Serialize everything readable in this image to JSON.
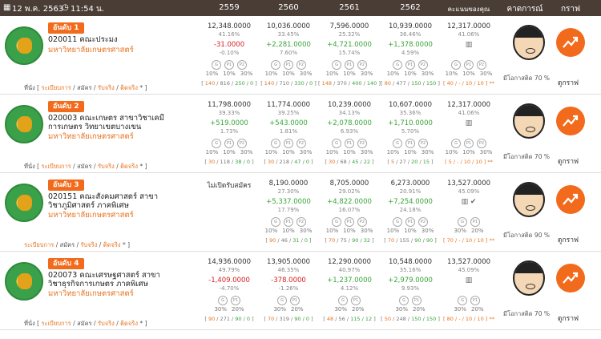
{
  "header": {
    "date": "12 พ.ค. 2563",
    "time": "11:54 น.",
    "years": [
      "2559",
      "2560",
      "2561",
      "2562"
    ],
    "score_col": "คะแนนของคุณ",
    "predict_col": "คาดการณ์",
    "graph_col": "กราฟ"
  },
  "rows": [
    {
      "rank": "อันดับ 1",
      "code": "020011 คณะประมง",
      "uni": "มหาวิทยาลัยเกษตรศาสตร์",
      "links": {
        "pre": "ที่นั่ง [",
        "a": "ระเบียบการ",
        "sep1": "/",
        "b": "สมัคร",
        "sep2": "/",
        "c": "รับจริง",
        "sep3": "/",
        "d": "ติดจริง",
        "post": "* ]"
      },
      "years": [
        {
          "v": "12,348.0000",
          "p": "41.16%",
          "d": "-31.0000",
          "dp": "-0.10%",
          "dsign": "neg",
          "g": [
            "G",
            "P1",
            "P2"
          ],
          "pct": [
            "10%",
            "10%",
            "30%"
          ],
          "br": {
            "a": "140",
            "b": "816",
            "c": "250",
            "d": "0"
          }
        },
        {
          "v": "10,036.0000",
          "p": "33.45%",
          "d": "+2,281.0000",
          "dp": "7.60%",
          "dsign": "pos",
          "g": [
            "G",
            "P1",
            "P2"
          ],
          "pct": [
            "10%",
            "10%",
            "30%"
          ],
          "br": {
            "a": "140",
            "b": "710",
            "c": "330",
            "d": "0"
          }
        },
        {
          "v": "7,596.0000",
          "p": "25.32%",
          "d": "+4,721.0000",
          "dp": "15.74%",
          "dsign": "pos",
          "g": [
            "G",
            "P1",
            "P2"
          ],
          "pct": [
            "10%",
            "10%",
            "30%"
          ],
          "br": {
            "a": "148",
            "b": "370",
            "c": "400",
            "d": "140"
          }
        },
        {
          "v": "10,939.0000",
          "p": "36.46%",
          "d": "+1,378.0000",
          "dp": "4.59%",
          "dsign": "pos",
          "g": [
            "G",
            "P1",
            "P2"
          ],
          "pct": [
            "10%",
            "10%",
            "30%"
          ],
          "br": {
            "a": "80",
            "b": "477",
            "c": "150",
            "d": "150"
          }
        }
      ],
      "score": {
        "v": "12,317.0000",
        "p": "41.06%",
        "g": [
          "G",
          "P1",
          "P2"
        ],
        "pct": [
          "10%",
          "10%",
          "30%"
        ],
        "br": "[ 40 / - / 10 / 10 ] **"
      },
      "chance": "มีโอกาสติด 70 %",
      "graph": "ดูกราฟ"
    },
    {
      "rank": "อันดับ 2",
      "code": "020003 คณะเกษตร สาขาวิชาเคมีการเกษตร วิทยาเขตบางเขน",
      "uni": "มหาวิทยาลัยเกษตรศาสตร์",
      "links": {
        "pre": "ที่นั่ง [",
        "a": "ระเบียบการ",
        "sep1": "/",
        "b": "สมัคร",
        "sep2": "/",
        "c": "รับจริง",
        "sep3": "/",
        "d": "ติดจริง",
        "post": "* ]"
      },
      "years": [
        {
          "v": "11,798.0000",
          "p": "39.33%",
          "d": "+519.0000",
          "dp": "1.73%",
          "dsign": "pos",
          "g": [
            "G",
            "P1",
            "P2"
          ],
          "pct": [
            "10%",
            "10%",
            "30%"
          ],
          "br": {
            "a": "30",
            "b": "118",
            "c": "38",
            "d": "0"
          }
        },
        {
          "v": "11,774.0000",
          "p": "39.25%",
          "d": "+543.0000",
          "dp": "1.81%",
          "dsign": "pos",
          "g": [
            "G",
            "P1",
            "P2"
          ],
          "pct": [
            "10%",
            "10%",
            "30%"
          ],
          "br": {
            "a": "30",
            "b": "218",
            "c": "47",
            "d": "0"
          }
        },
        {
          "v": "10,239.0000",
          "p": "34.13%",
          "d": "+2,078.0000",
          "dp": "6.93%",
          "dsign": "pos",
          "g": [
            "G",
            "P1",
            "P2"
          ],
          "pct": [
            "10%",
            "10%",
            "30%"
          ],
          "br": {
            "a": "30",
            "b": "68",
            "c": "45",
            "d": "22"
          }
        },
        {
          "v": "10,607.0000",
          "p": "35.36%",
          "d": "+1,710.0000",
          "dp": "5.70%",
          "dsign": "pos",
          "g": [
            "G",
            "P1",
            "P2"
          ],
          "pct": [
            "10%",
            "10%",
            "30%"
          ],
          "br": {
            "a": "5",
            "b": "27",
            "c": "20",
            "d": "15"
          }
        }
      ],
      "score": {
        "v": "12,317.0000",
        "p": "41.06%",
        "g": [
          "G",
          "P1",
          "P2"
        ],
        "pct": [
          "10%",
          "10%",
          "30%"
        ],
        "br": "[ 5 / - / 10 / 10 ] **"
      },
      "chance": "มีโอกาสติด 70 %",
      "graph": "ดูกราฟ"
    },
    {
      "rank": "อันดับ 3",
      "code": "020151 คณะสังคมศาสตร์ สาขาวิชาภูมิศาสตร์ ภาคพิเศษ",
      "uni": "มหาวิทยาลัยเกษตรศาสตร์",
      "links": {
        "pre": "",
        "a": "ระเบียบการ",
        "sep1": "/",
        "b": "สมัคร",
        "sep2": "/",
        "c": "รับจริง",
        "sep3": "/",
        "d": "ติดจริง",
        "post": "* ]"
      },
      "years": [
        {
          "v": "ไม่เปิดรับสมัคร",
          "p": "",
          "d": "",
          "dp": "",
          "dsign": "pos",
          "g": [],
          "pct": [],
          "br": null
        },
        {
          "v": "8,190.0000",
          "p": "27.30%",
          "d": "+5,337.0000",
          "dp": "17.79%",
          "dsign": "pos",
          "g": [
            "G",
            "P1",
            "P2"
          ],
          "pct": [
            "10%",
            "10%",
            "30%"
          ],
          "br": {
            "a": "90",
            "b": "46",
            "c": "31",
            "d": "0"
          }
        },
        {
          "v": "8,705.0000",
          "p": "29.02%",
          "d": "+4,822.0000",
          "dp": "16.07%",
          "dsign": "pos",
          "g": [
            "G",
            "P1",
            "P2"
          ],
          "pct": [
            "10%",
            "10%",
            "30%"
          ],
          "br": {
            "a": "70",
            "b": "75",
            "c": "90",
            "d": "32"
          }
        },
        {
          "v": "6,273.0000",
          "p": "20.91%",
          "d": "+7,254.0000",
          "dp": "24.18%",
          "dsign": "pos",
          "g": [
            "G",
            "P1",
            "P2"
          ],
          "pct": [
            "10%",
            "10%",
            "30%"
          ],
          "br": {
            "a": "70",
            "b": "155",
            "c": "90",
            "d": "90"
          }
        }
      ],
      "score": {
        "v": "13,527.0000",
        "p": "45.09%",
        "g": [
          "G",
          "P1"
        ],
        "pct": [
          "30%",
          "20%"
        ],
        "br": "[ 70 / - / 10 / 10 ] **"
      },
      "chance": "มีโอกาสติด 90 %",
      "graph": "ดูกราฟ"
    },
    {
      "rank": "อันดับ 4",
      "code": "020073 คณะเศรษฐศาสตร์ สาขาวิชาธุรกิจการเกษตร ภาคพิเศษ",
      "uni": "มหาวิทยาลัยเกษตรศาสตร์",
      "links": {
        "pre": "ที่นั่ง [",
        "a": "ระเบียบการ",
        "sep1": "/",
        "b": "สมัคร",
        "sep2": "/",
        "c": "รับจริง",
        "sep3": "/",
        "d": "ติดจริง",
        "post": "* ]"
      },
      "years": [
        {
          "v": "14,936.0000",
          "p": "49.79%",
          "d": "-1,409.0000",
          "dp": "-4.70%",
          "dsign": "neg",
          "g": [
            "G",
            "P1"
          ],
          "pct": [
            "30%",
            "20%"
          ],
          "br": {
            "a": "90",
            "b": "271",
            "c": "90",
            "d": "0"
          }
        },
        {
          "v": "13,905.0000",
          "p": "46.35%",
          "d": "-378.0000",
          "dp": "-1.26%",
          "dsign": "neg",
          "g": [
            "G",
            "P1"
          ],
          "pct": [
            "30%",
            "20%"
          ],
          "br": {
            "a": "70",
            "b": "319",
            "c": "90",
            "d": "0"
          }
        },
        {
          "v": "12,290.0000",
          "p": "40.97%",
          "d": "+1,237.0000",
          "dp": "4.12%",
          "dsign": "pos",
          "g": [
            "G",
            "P1"
          ],
          "pct": [
            "30%",
            "20%"
          ],
          "br": {
            "a": "48",
            "b": "56",
            "c": "115",
            "d": "12"
          }
        },
        {
          "v": "10,548.0000",
          "p": "35.16%",
          "d": "+2,979.0000",
          "dp": "9.93%",
          "dsign": "pos",
          "g": [
            "G",
            "P1"
          ],
          "pct": [
            "30%",
            "20%"
          ],
          "br": {
            "a": "50",
            "b": "248",
            "c": "150",
            "d": "150"
          }
        }
      ],
      "score": {
        "v": "13,527.0000",
        "p": "45.09%",
        "g": [
          "G",
          "P1"
        ],
        "pct": [
          "30%",
          "20%"
        ],
        "br": "[ 80 / - / 10 / 10 ] **"
      },
      "chance": "มีโอกาสติด 70 %",
      "graph": "ดูกราฟ"
    }
  ]
}
